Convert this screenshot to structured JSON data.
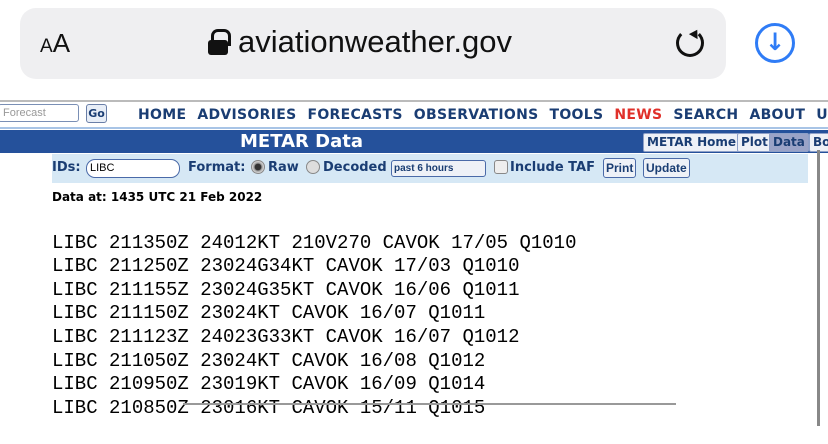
{
  "browser": {
    "text_size_label_small": "A",
    "text_size_label_large": "A",
    "url": "aviationweather.gov",
    "accent": "#2f7cf6"
  },
  "site": {
    "search_placeholder": "Forecast",
    "go_label": "Go",
    "nav": [
      "HOME",
      "ADVISORIES",
      "FORECASTS",
      "OBSERVATIONS",
      "TOOLS",
      "NEWS",
      "SEARCH",
      "ABOUT",
      "USE"
    ],
    "title": "METAR Data",
    "tabs": [
      "METAR Home",
      "Plot",
      "Data",
      "Bo"
    ],
    "active_tab": "Data"
  },
  "form": {
    "ids_label": "IDs:",
    "ids_value": "LIBC",
    "format_label": "Format:",
    "raw_label": "Raw",
    "decoded_label": "Decoded",
    "format_selected": "Raw",
    "period": "past 6 hours",
    "include_taf_label": "Include TAF",
    "include_taf": false,
    "print_label": "Print",
    "update_label": "Update"
  },
  "data_at": "Data at: 1435 UTC 21 Feb 2022",
  "metars": [
    "LIBC 211350Z 24012KT 210V270 CAVOK 17/05 Q1010",
    "LIBC 211250Z 23024G34KT CAVOK 17/03 Q1010",
    "LIBC 211155Z 23024G35KT CAVOK 16/06 Q1011",
    "LIBC 211150Z 23024KT CAVOK 16/07 Q1011",
    "LIBC 211123Z 24023G33KT CAVOK 16/07 Q1012",
    "LIBC 211050Z 23024KT CAVOK 16/08 Q1012",
    "LIBC 210950Z 23019KT CAVOK 16/09 Q1014",
    "LIBC 210850Z 23016KT CAVOK 15/11 Q1015"
  ]
}
